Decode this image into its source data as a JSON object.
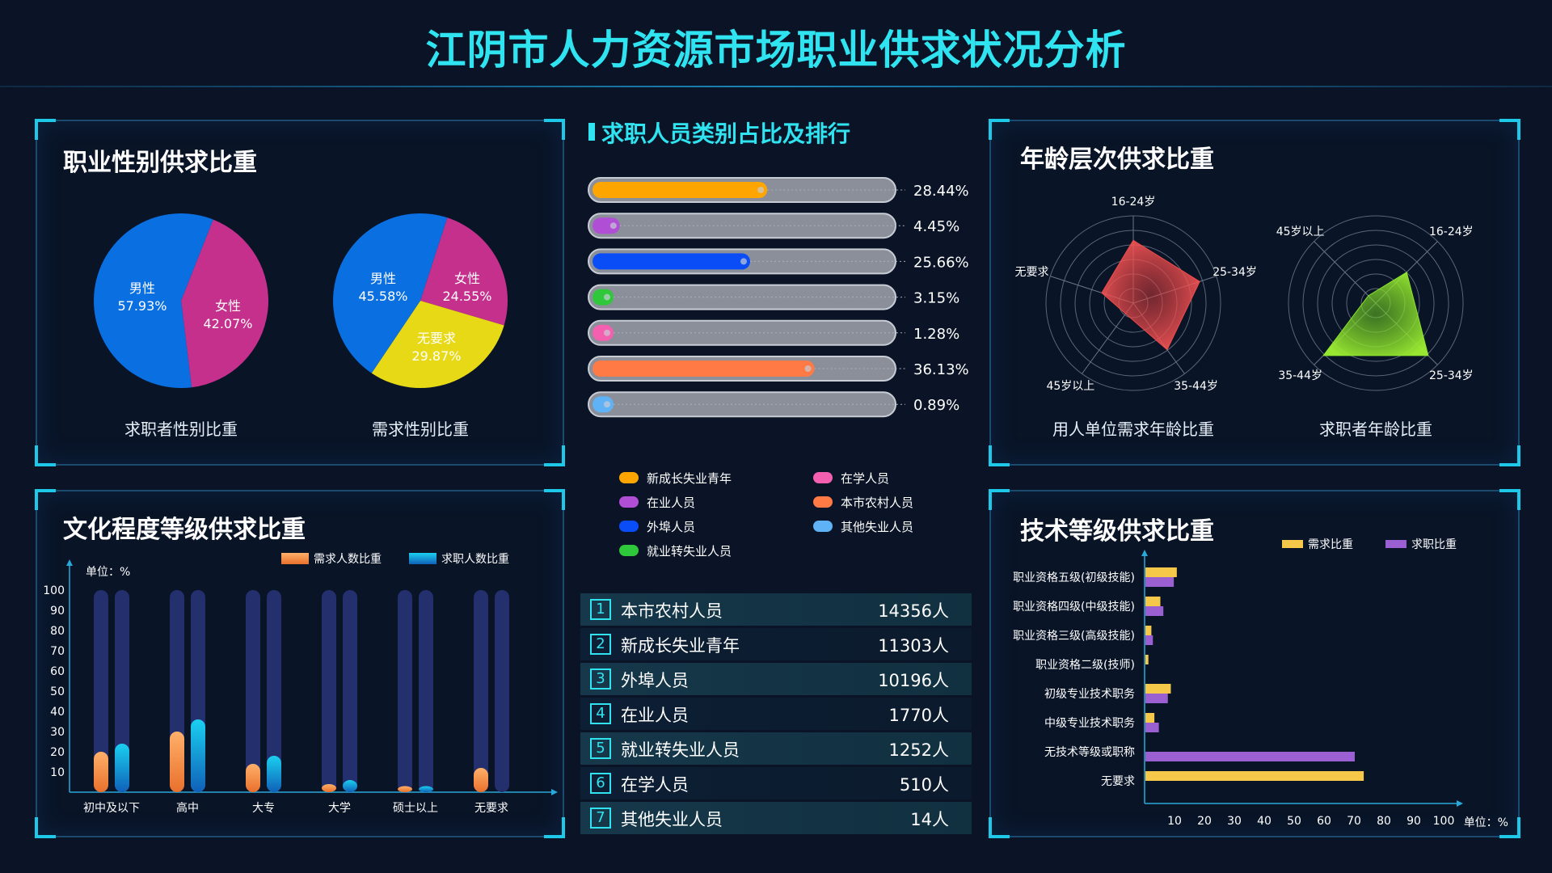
{
  "page": {
    "title": "江阴市人力资源市场职业供求状况分析"
  },
  "panels": {
    "gender": {
      "title": "职业性别供求比重",
      "chart_data": [
        {
          "type": "pie",
          "title": "求职者性别比重",
          "labels": [
            "男性",
            "女性"
          ],
          "values": [
            57.93,
            42.07
          ],
          "value_labels": [
            "57.93%",
            "42.07%"
          ],
          "colors": [
            "#0a6fe0",
            "#c4308c"
          ]
        },
        {
          "type": "pie",
          "title": "需求性别比重",
          "labels": [
            "男性",
            "女性",
            "无要求"
          ],
          "values": [
            45.58,
            24.55,
            29.87
          ],
          "value_labels": [
            "45.58%",
            "24.55%",
            "29.87%"
          ],
          "colors": [
            "#0a6fe0",
            "#c4308c",
            "#e8d916"
          ]
        }
      ]
    },
    "category": {
      "title": "求职人员类别占比及排行",
      "chart_data": {
        "type": "bar",
        "orientation": "horizontal",
        "categories": [
          "新成长失业青年",
          "在业人员",
          "外埠人员",
          "就业转失业人员",
          "在学人员",
          "本市农村人员",
          "其他失业人员"
        ],
        "values": [
          28.44,
          4.45,
          25.66,
          3.15,
          1.28,
          36.13,
          0.89
        ],
        "value_labels": [
          "28.44%",
          "4.45%",
          "25.66%",
          "3.15%",
          "1.28%",
          "36.13%",
          "0.89%"
        ],
        "colors": [
          "#ffa500",
          "#b04fd6",
          "#0a4cf5",
          "#2ec83a",
          "#f55fb0",
          "#ff7a45",
          "#5fb2f5"
        ],
        "legend_position": "bottom"
      },
      "legend": [
        {
          "label": "新成长失业青年",
          "color": "#ffa500"
        },
        {
          "label": "在学人员",
          "color": "#f55fb0"
        },
        {
          "label": "在业人员",
          "color": "#b04fd6"
        },
        {
          "label": "本市农村人员",
          "color": "#ff7a45"
        },
        {
          "label": "外埠人员",
          "color": "#0a4cf5"
        },
        {
          "label": "其他失业人员",
          "color": "#5fb2f5"
        },
        {
          "label": "就业转失业人员",
          "color": "#2ec83a"
        }
      ],
      "ranking": [
        {
          "rank": "1",
          "name": "本市农村人员",
          "count": "14356人"
        },
        {
          "rank": "2",
          "name": "新成长失业青年",
          "count": "11303人"
        },
        {
          "rank": "3",
          "name": "外埠人员",
          "count": "10196人"
        },
        {
          "rank": "4",
          "name": "在业人员",
          "count": "1770人"
        },
        {
          "rank": "5",
          "name": "就业转失业人员",
          "count": "1252人"
        },
        {
          "rank": "6",
          "name": "在学人员",
          "count": "510人"
        },
        {
          "rank": "7",
          "name": "其他失业人员",
          "count": "14人"
        }
      ]
    },
    "age": {
      "title": "年龄层次供求比重",
      "chart_data": [
        {
          "type": "radar",
          "title": "用人单位需求年龄比重",
          "axes": [
            "16-24岁",
            "25-34岁",
            "35-44岁",
            "45岁以上",
            "无要求"
          ],
          "values": [
            0.72,
            0.8,
            0.66,
            0.15,
            0.38
          ],
          "color": "#f04a4a"
        },
        {
          "type": "radar",
          "title": "求职者年龄比重",
          "axes": [
            "16-24岁",
            "25-34岁",
            "35-44岁",
            "45岁以上"
          ],
          "values": [
            0.5,
            0.85,
            0.85,
            0.12
          ],
          "color": "#8ae62c"
        }
      ]
    },
    "education": {
      "title": "文化程度等级供求比重",
      "chart_data": {
        "type": "bar",
        "categories": [
          "初中及以下",
          "高中",
          "大专",
          "大学",
          "硕士以上",
          "无要求"
        ],
        "series": [
          {
            "name": "需求人数比重",
            "values": [
              20,
              30,
              14,
              4,
              3,
              12
            ],
            "color": "#f08a3c"
          },
          {
            "name": "求职人数比重",
            "values": [
              24,
              36,
              18,
              6,
              3,
              0
            ],
            "color": "#16a8e0"
          }
        ],
        "ylim": [
          0,
          100
        ],
        "yticks": [
          10,
          20,
          30,
          40,
          50,
          60,
          70,
          80,
          90,
          100
        ],
        "ylabel": "单位：%",
        "legend_position": "top-right"
      }
    },
    "skill": {
      "title": "技术等级供求比重",
      "chart_data": {
        "type": "bar",
        "orientation": "horizontal",
        "categories": [
          "职业资格五级(初级技能)",
          "职业资格四级(中级技能)",
          "职业资格三级(高级技能)",
          "职业资格二级(技师)",
          "初级专业技术职务",
          "中级专业技术职务",
          "无技术等级或职称",
          "无要求"
        ],
        "series": [
          {
            "name": "需求比重",
            "values": [
              10.5,
              5,
              2,
              1,
              8.5,
              3,
              0,
              73
            ],
            "color": "#f5c84a"
          },
          {
            "name": "求职比重",
            "values": [
              9.5,
              6,
              2.5,
              0,
              7.5,
              4.5,
              70,
              0
            ],
            "color": "#9a5fd0"
          }
        ],
        "xlim": [
          0,
          100
        ],
        "xticks": [
          10,
          20,
          30,
          40,
          50,
          60,
          70,
          80,
          90,
          100
        ],
        "xlabel": "单位：%",
        "legend_position": "top-right"
      }
    }
  }
}
